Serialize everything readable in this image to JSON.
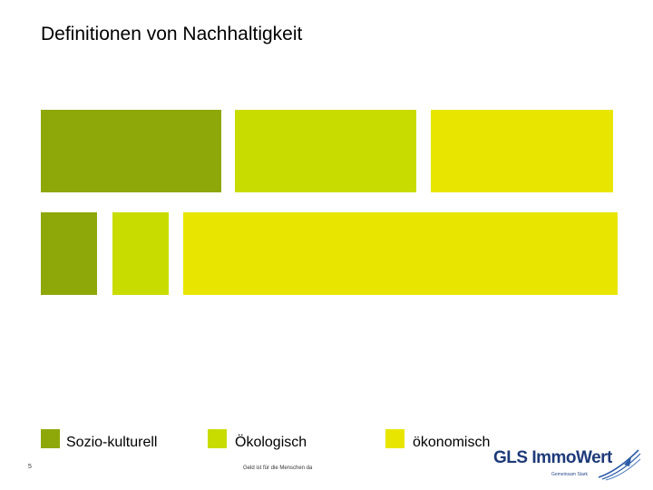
{
  "slide": {
    "title": "Definitionen von Nachhaltigkeit",
    "colors": {
      "sozio_kulturell": "#8ea80a",
      "oekologisch": "#c9dc00",
      "oekonomisch": "#e8e600"
    }
  },
  "legend": {
    "items": [
      {
        "label": "Sozio-kulturell",
        "color": "#8ea80a"
      },
      {
        "label": "Ökologisch",
        "color": "#c9dc00"
      },
      {
        "label": "ökonomisch",
        "color": "#e8e600"
      }
    ]
  },
  "footer": {
    "page_number": "5",
    "tagline": "Geld ist für die Menschen da"
  },
  "logo": {
    "name": "GLS ImmoWert",
    "subtitle": "Gemeinsam Stark",
    "colors": {
      "text": "#1e3a7a"
    }
  }
}
